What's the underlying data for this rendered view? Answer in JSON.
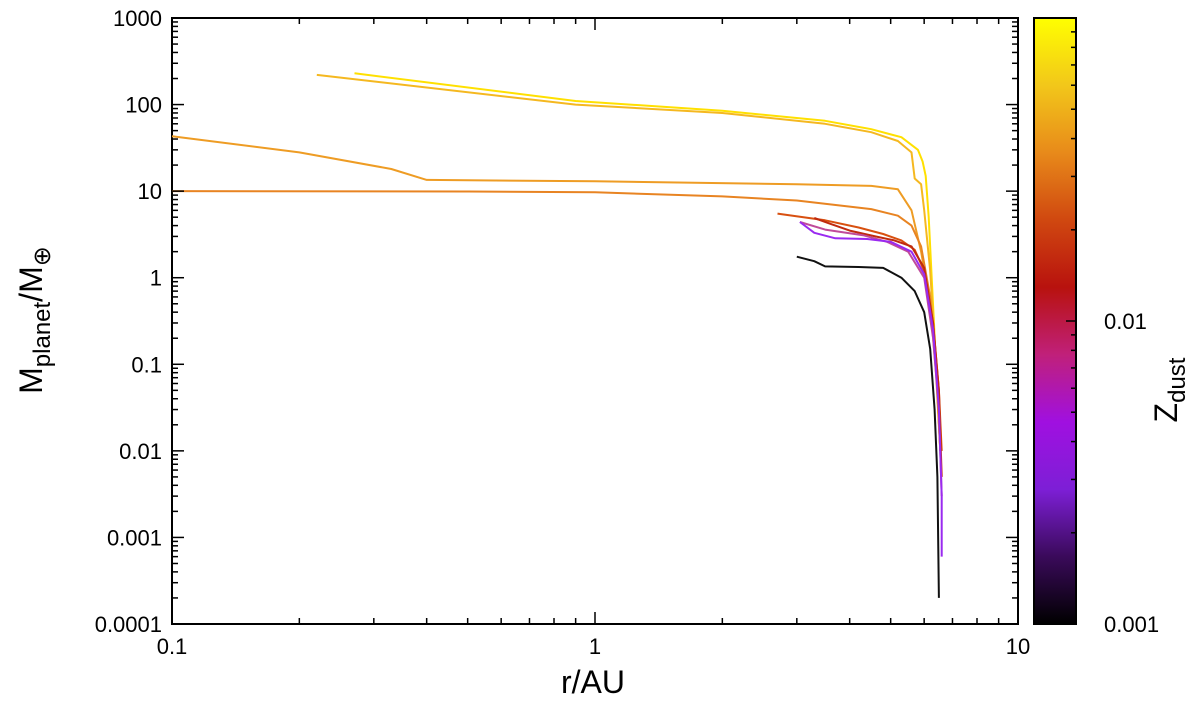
{
  "chart_data": {
    "type": "line",
    "title": "",
    "xlabel": "r/AU",
    "ylabel_main": "M",
    "ylabel_sub1": "planet",
    "ylabel_slash": "/M",
    "ylabel_sub2": "⊕",
    "colorbar_label_main": "Z",
    "colorbar_label_sub": "dust",
    "xscale": "log",
    "yscale": "log",
    "xlim": [
      0.1,
      10
    ],
    "ylim": [
      0.0001,
      1000
    ],
    "x_ticks": [
      0.1,
      1,
      10
    ],
    "x_tick_labels": [
      "0.1",
      "1",
      "10"
    ],
    "y_ticks": [
      0.0001,
      0.001,
      0.01,
      0.1,
      1,
      10,
      100,
      1000
    ],
    "y_tick_labels": [
      "0.0001",
      "0.001",
      "0.01",
      "0.1",
      "1",
      "10",
      "100",
      "1000"
    ],
    "colorbar": {
      "scale": "log",
      "lim": [
        0.001,
        0.1
      ],
      "tick_labels": [
        "0.001",
        "0.01"
      ],
      "ticks": [
        0.001,
        0.01
      ],
      "colors": [
        "#000000",
        "#3a0a5a",
        "#7d1fd6",
        "#a010e0",
        "#c0207a",
        "#b8120e",
        "#d04810",
        "#e88a1a",
        "#f2c71a",
        "#ffff00"
      ]
    },
    "grid": false,
    "legend": "none",
    "series": [
      {
        "color": "#ffe000",
        "points": [
          [
            0.27,
            230
          ],
          [
            0.9,
            110
          ],
          [
            2,
            85
          ],
          [
            3.5,
            65
          ],
          [
            4.5,
            52
          ],
          [
            5.3,
            42
          ],
          [
            5.8,
            30
          ],
          [
            5.95,
            22
          ],
          [
            6.05,
            15
          ],
          [
            6.15,
            5
          ],
          [
            6.25,
            1
          ],
          [
            6.4,
            0.1
          ],
          [
            6.55,
            0.01
          ]
        ]
      },
      {
        "color": "#f5b820",
        "points": [
          [
            0.22,
            220
          ],
          [
            0.9,
            100
          ],
          [
            2,
            80
          ],
          [
            3.5,
            60
          ],
          [
            4.5,
            48
          ],
          [
            5.2,
            38
          ],
          [
            5.6,
            28
          ],
          [
            5.7,
            14
          ],
          [
            5.9,
            12
          ],
          [
            6.0,
            6
          ],
          [
            6.2,
            1.2
          ],
          [
            6.4,
            0.1
          ],
          [
            6.55,
            0.01
          ]
        ]
      },
      {
        "color": "#ee9c24",
        "points": [
          [
            0.1,
            43
          ],
          [
            0.2,
            28
          ],
          [
            0.33,
            18
          ],
          [
            0.4,
            13.5
          ],
          [
            1,
            13
          ],
          [
            3,
            12
          ],
          [
            4.5,
            11.5
          ],
          [
            5.2,
            10.5
          ],
          [
            5.6,
            6
          ],
          [
            5.9,
            2
          ],
          [
            6.2,
            0.5
          ],
          [
            6.4,
            0.08
          ],
          [
            6.55,
            0.01
          ]
        ]
      },
      {
        "color": "#e88422",
        "points": [
          [
            0.1,
            10
          ],
          [
            0.5,
            9.9
          ],
          [
            1,
            9.7
          ],
          [
            2,
            8.7
          ],
          [
            3,
            7.8
          ],
          [
            4.5,
            6.2
          ],
          [
            5.2,
            5.2
          ],
          [
            5.6,
            4
          ],
          [
            5.9,
            2.3
          ],
          [
            6.2,
            0.6
          ],
          [
            6.4,
            0.1
          ],
          [
            6.55,
            0.01
          ]
        ]
      },
      {
        "color": "#d85010",
        "points": [
          [
            2.7,
            5.5
          ],
          [
            3.5,
            4.6
          ],
          [
            4.2,
            3.8
          ],
          [
            4.8,
            3.2
          ],
          [
            5.3,
            2.7
          ],
          [
            5.7,
            2.1
          ],
          [
            6,
            1.2
          ],
          [
            6.3,
            0.3
          ],
          [
            6.5,
            0.05
          ],
          [
            6.6,
            0.01
          ]
        ]
      },
      {
        "color": "#c02a0e",
        "points": [
          [
            3.3,
            4.9
          ],
          [
            3.6,
            4.2
          ],
          [
            4,
            3.5
          ],
          [
            4.6,
            3
          ],
          [
            5.1,
            2.7
          ],
          [
            5.6,
            2.3
          ],
          [
            6,
            1.3
          ],
          [
            6.3,
            0.3
          ],
          [
            6.5,
            0.05
          ],
          [
            6.6,
            0.005
          ]
        ]
      },
      {
        "color": "#c04a9a",
        "points": [
          [
            3.05,
            4.4
          ],
          [
            3.5,
            3.6
          ],
          [
            4.3,
            3.1
          ],
          [
            4.9,
            2.6
          ],
          [
            5.5,
            2.0
          ],
          [
            6.0,
            1.0
          ],
          [
            6.3,
            0.2
          ],
          [
            6.5,
            0.03
          ],
          [
            6.6,
            0.003
          ]
        ]
      },
      {
        "color": "#9a2af0",
        "points": [
          [
            3.05,
            4.4
          ],
          [
            3.3,
            3.3
          ],
          [
            3.7,
            2.85
          ],
          [
            4.4,
            2.8
          ],
          [
            5.0,
            2.6
          ],
          [
            5.6,
            2.0
          ],
          [
            6.0,
            1.1
          ],
          [
            6.3,
            0.25
          ],
          [
            6.5,
            0.03
          ],
          [
            6.6,
            0.003
          ],
          [
            6.6,
            0.0006
          ]
        ]
      },
      {
        "color": "#111111",
        "points": [
          [
            3.0,
            1.75
          ],
          [
            3.3,
            1.55
          ],
          [
            3.5,
            1.35
          ],
          [
            4.2,
            1.33
          ],
          [
            4.8,
            1.3
          ],
          [
            5.3,
            1.0
          ],
          [
            5.7,
            0.7
          ],
          [
            6.0,
            0.4
          ],
          [
            6.2,
            0.15
          ],
          [
            6.35,
            0.03
          ],
          [
            6.45,
            0.005
          ],
          [
            6.5,
            0.0002
          ]
        ]
      }
    ]
  }
}
